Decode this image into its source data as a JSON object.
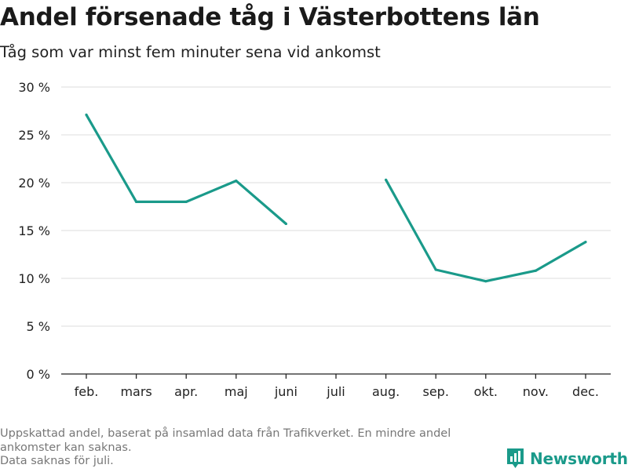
{
  "title": "Andel försenade tåg i Västerbottens län",
  "subtitle": "Tåg som var minst fem minuter sena vid ankomst",
  "footnote": {
    "line1": "Uppskattad andel, baserat på insamlad data från Trafikverket. En mindre andel",
    "line2": "ankomster kan saknas.",
    "line3": "Data saknas för juli."
  },
  "brand": {
    "name": "Newsworthy"
  },
  "colors": {
    "line": "#1a9a8a",
    "grid": "#dddddd",
    "axis": "#222222"
  },
  "chart_data": {
    "type": "line",
    "categories": [
      "feb.",
      "mars",
      "apr.",
      "maj",
      "juni",
      "juli",
      "aug.",
      "sep.",
      "okt.",
      "nov.",
      "dec."
    ],
    "series": [
      {
        "values": [
          27.1,
          18.0,
          18.0,
          20.2,
          15.7,
          null,
          20.3,
          10.9,
          9.7,
          10.8,
          13.8
        ]
      }
    ],
    "yticks": [
      "0 %",
      "5 %",
      "10 %",
      "15 %",
      "20 %",
      "25 %",
      "30 %"
    ],
    "ylim": [
      0,
      30
    ],
    "grid": true,
    "xlabel": "",
    "ylabel": ""
  }
}
